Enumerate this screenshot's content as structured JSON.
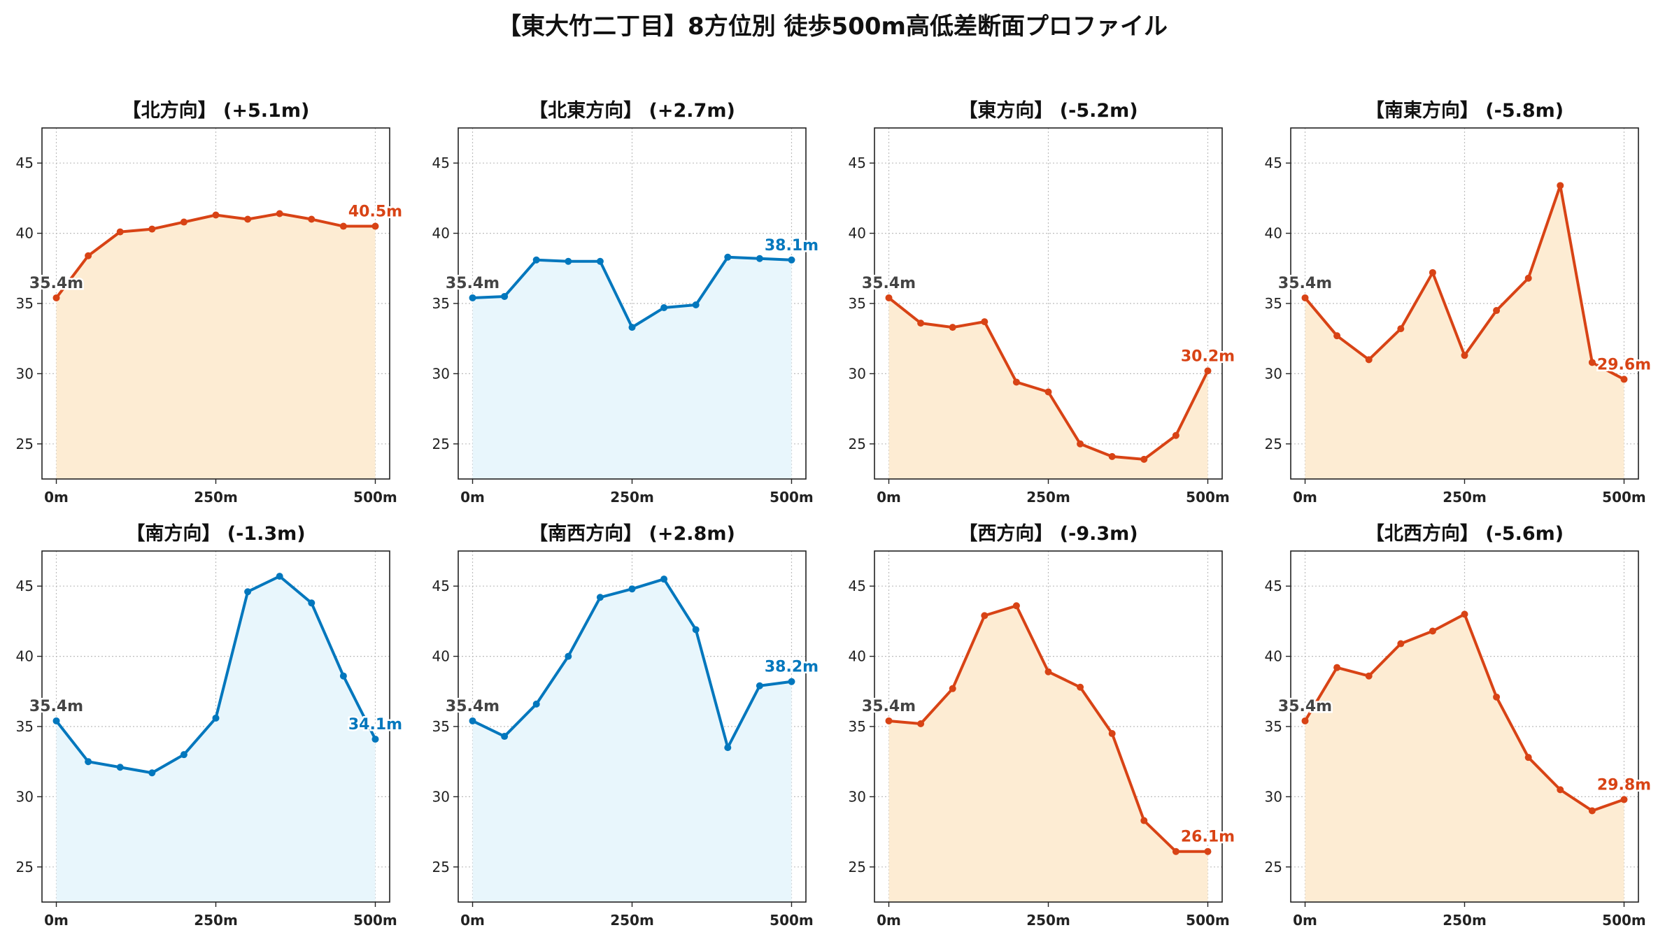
{
  "title": "【東大竹二丁目】8方位別 徒歩500m高低差断面プロファイル",
  "colors": {
    "up": "#d84315",
    "down": "#0277bd",
    "fill_up": "#fdecd3",
    "fill_down": "#e8f6fc",
    "start_label": "#444444"
  },
  "chart_data": [
    {
      "type": "area",
      "title": "【北方向】 (+5.1m)",
      "color": "up",
      "start_label": "35.4m",
      "end_label": "40.5m",
      "x": [
        0,
        50,
        100,
        150,
        200,
        250,
        300,
        350,
        400,
        450,
        500
      ],
      "values": [
        35.4,
        38.4,
        40.1,
        40.3,
        40.8,
        41.3,
        41.0,
        41.4,
        41.0,
        40.5,
        40.5
      ],
      "xticks": [
        "0m",
        "250m",
        "500m"
      ],
      "yticks": [
        "25",
        "30",
        "35",
        "40",
        "45"
      ],
      "ylim": [
        22.5,
        47.5
      ],
      "grid": true
    },
    {
      "type": "area",
      "title": "【北東方向】 (+2.7m)",
      "color": "down",
      "start_label": "35.4m",
      "end_label": "38.1m",
      "x": [
        0,
        50,
        100,
        150,
        200,
        250,
        300,
        350,
        400,
        450,
        500
      ],
      "values": [
        35.4,
        35.5,
        38.1,
        38.0,
        38.0,
        33.3,
        34.7,
        34.9,
        38.3,
        38.2,
        38.1
      ],
      "xticks": [
        "0m",
        "250m",
        "500m"
      ],
      "yticks": [
        "25",
        "30",
        "35",
        "40",
        "45"
      ],
      "ylim": [
        22.5,
        47.5
      ],
      "grid": true
    },
    {
      "type": "area",
      "title": "【東方向】 (-5.2m)",
      "color": "up",
      "start_label": "35.4m",
      "end_label": "30.2m",
      "x": [
        0,
        50,
        100,
        150,
        200,
        250,
        300,
        350,
        400,
        450,
        500
      ],
      "values": [
        35.4,
        33.6,
        33.3,
        33.7,
        29.4,
        28.7,
        25.0,
        24.1,
        23.9,
        25.6,
        30.2
      ],
      "xticks": [
        "0m",
        "250m",
        "500m"
      ],
      "yticks": [
        "25",
        "30",
        "35",
        "40",
        "45"
      ],
      "ylim": [
        22.5,
        47.5
      ],
      "grid": true
    },
    {
      "type": "area",
      "title": "【南東方向】 (-5.8m)",
      "color": "up",
      "start_label": "35.4m",
      "end_label": "29.6m",
      "x": [
        0,
        50,
        100,
        150,
        200,
        250,
        300,
        350,
        400,
        450,
        500
      ],
      "values": [
        35.4,
        32.7,
        31.0,
        33.2,
        37.2,
        31.3,
        34.5,
        36.8,
        43.4,
        30.8,
        29.6
      ],
      "xticks": [
        "0m",
        "250m",
        "500m"
      ],
      "yticks": [
        "25",
        "30",
        "35",
        "40",
        "45"
      ],
      "ylim": [
        22.5,
        47.5
      ],
      "grid": true
    },
    {
      "type": "area",
      "title": "【南方向】 (-1.3m)",
      "color": "down",
      "start_label": "35.4m",
      "end_label": "34.1m",
      "x": [
        0,
        50,
        100,
        150,
        200,
        250,
        300,
        350,
        400,
        450,
        500
      ],
      "values": [
        35.4,
        32.5,
        32.1,
        31.7,
        33.0,
        35.6,
        44.6,
        45.7,
        43.8,
        38.6,
        34.1
      ],
      "xticks": [
        "0m",
        "250m",
        "500m"
      ],
      "yticks": [
        "25",
        "30",
        "35",
        "40",
        "45"
      ],
      "ylim": [
        22.5,
        47.5
      ],
      "grid": true
    },
    {
      "type": "area",
      "title": "【南西方向】 (+2.8m)",
      "color": "down",
      "start_label": "35.4m",
      "end_label": "38.2m",
      "x": [
        0,
        50,
        100,
        150,
        200,
        250,
        300,
        350,
        400,
        450,
        500
      ],
      "values": [
        35.4,
        34.3,
        36.6,
        40.0,
        44.2,
        44.8,
        45.5,
        41.9,
        33.5,
        37.9,
        38.2
      ],
      "xticks": [
        "0m",
        "250m",
        "500m"
      ],
      "yticks": [
        "25",
        "30",
        "35",
        "40",
        "45"
      ],
      "ylim": [
        22.5,
        47.5
      ],
      "grid": true
    },
    {
      "type": "area",
      "title": "【西方向】 (-9.3m)",
      "color": "up",
      "start_label": "35.4m",
      "end_label": "26.1m",
      "x": [
        0,
        50,
        100,
        150,
        200,
        250,
        300,
        350,
        400,
        450,
        500
      ],
      "values": [
        35.4,
        35.2,
        37.7,
        42.9,
        43.6,
        38.9,
        37.8,
        34.5,
        28.3,
        26.1,
        26.1
      ],
      "xticks": [
        "0m",
        "250m",
        "500m"
      ],
      "yticks": [
        "25",
        "30",
        "35",
        "40",
        "45"
      ],
      "ylim": [
        22.5,
        47.5
      ],
      "grid": true
    },
    {
      "type": "area",
      "title": "【北西方向】 (-5.6m)",
      "color": "up",
      "start_label": "35.4m",
      "end_label": "29.8m",
      "x": [
        0,
        50,
        100,
        150,
        200,
        250,
        300,
        350,
        400,
        450,
        500
      ],
      "values": [
        35.4,
        39.2,
        38.6,
        40.9,
        41.8,
        43.0,
        37.1,
        32.8,
        30.5,
        29.0,
        29.8
      ],
      "xticks": [
        "0m",
        "250m",
        "500m"
      ],
      "yticks": [
        "25",
        "30",
        "35",
        "40",
        "45"
      ],
      "ylim": [
        22.5,
        47.5
      ],
      "grid": true
    }
  ]
}
